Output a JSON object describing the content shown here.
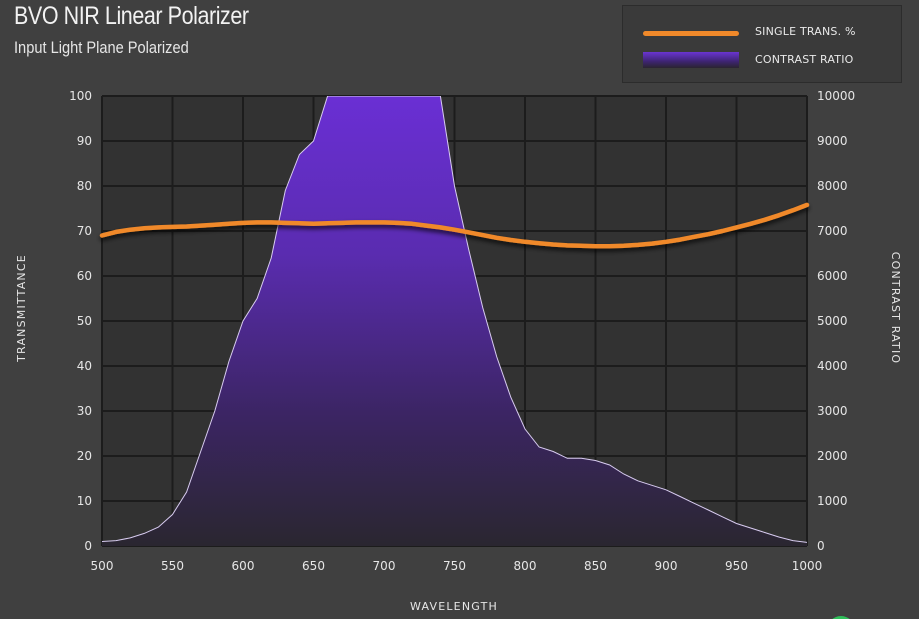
{
  "title": "BVO NIR Linear Polarizer",
  "subtitle": "Input Light Plane Polarized",
  "legend": {
    "items": [
      {
        "label": "SINGLE TRANS. %",
        "color": "#f0892a",
        "kind": "line"
      },
      {
        "label": "CONTRAST RATIO",
        "color": "#6a35d1",
        "kind": "area"
      }
    ]
  },
  "chart_data": {
    "type": "line",
    "xlabel": "WAVELENGTH",
    "ylabel": "TRANSMITTANCE",
    "y2label": "CONTRAST RATIO",
    "xlim": [
      500,
      1000
    ],
    "ylim": [
      0,
      100
    ],
    "y2lim": [
      0,
      10000
    ],
    "xticks": [
      500,
      550,
      600,
      650,
      700,
      750,
      800,
      850,
      900,
      950,
      1000
    ],
    "yticks": [
      0,
      10,
      20,
      30,
      40,
      50,
      60,
      70,
      80,
      90,
      100
    ],
    "y2ticks": [
      0,
      1000,
      2000,
      3000,
      4000,
      5000,
      6000,
      7000,
      8000,
      9000,
      10000
    ],
    "grid": true,
    "legend_position": "top-right",
    "series": [
      {
        "name": "SINGLE TRANS. %",
        "axis": "left",
        "color": "#f0892a",
        "x": [
          500,
          510,
          520,
          530,
          540,
          550,
          560,
          570,
          580,
          590,
          600,
          610,
          620,
          630,
          640,
          650,
          660,
          670,
          680,
          690,
          700,
          710,
          720,
          730,
          740,
          750,
          760,
          770,
          780,
          790,
          800,
          810,
          820,
          830,
          840,
          850,
          860,
          870,
          880,
          890,
          900,
          910,
          920,
          930,
          940,
          950,
          960,
          970,
          980,
          990,
          1000
        ],
        "values": [
          69.0,
          69.8,
          70.3,
          70.6,
          70.8,
          70.9,
          71.0,
          71.2,
          71.4,
          71.6,
          71.8,
          71.9,
          71.9,
          71.8,
          71.7,
          71.6,
          71.7,
          71.8,
          71.9,
          71.9,
          71.9,
          71.8,
          71.6,
          71.2,
          70.8,
          70.3,
          69.7,
          69.1,
          68.5,
          68.0,
          67.6,
          67.3,
          67.0,
          66.8,
          66.7,
          66.6,
          66.6,
          66.7,
          66.9,
          67.2,
          67.6,
          68.1,
          68.7,
          69.3,
          70.0,
          70.8,
          71.6,
          72.5,
          73.5,
          74.6,
          75.8
        ]
      },
      {
        "name": "CONTRAST RATIO",
        "axis": "right",
        "color": "#6a35d1",
        "x": [
          500,
          510,
          520,
          530,
          540,
          550,
          560,
          570,
          580,
          590,
          600,
          610,
          620,
          630,
          640,
          650,
          660,
          670,
          680,
          690,
          700,
          710,
          720,
          730,
          740,
          750,
          760,
          770,
          780,
          790,
          800,
          810,
          820,
          830,
          840,
          850,
          860,
          870,
          880,
          890,
          900,
          910,
          920,
          930,
          940,
          950,
          960,
          970,
          980,
          990,
          1000
        ],
        "values": [
          100,
          120,
          180,
          280,
          420,
          700,
          1200,
          2100,
          3000,
          4100,
          5000,
          5500,
          6400,
          7900,
          8700,
          9000,
          10000,
          10000,
          10000,
          10000,
          10000,
          10000,
          10000,
          10000,
          10000,
          8000,
          6600,
          5300,
          4200,
          3300,
          2600,
          2200,
          2100,
          1950,
          1950,
          1900,
          1800,
          1600,
          1450,
          1350,
          1250,
          1100,
          950,
          800,
          650,
          500,
          400,
          300,
          200,
          120,
          80
        ]
      }
    ]
  }
}
